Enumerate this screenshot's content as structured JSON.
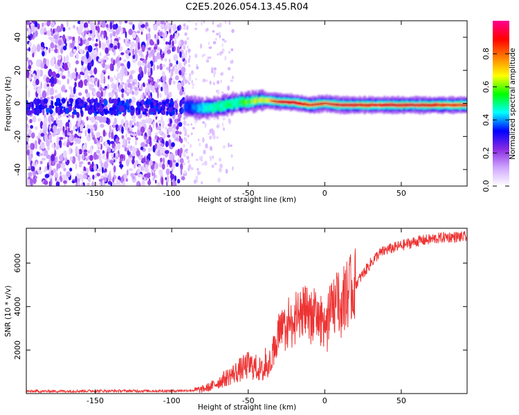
{
  "title": "C2E5.2026.054.13.45.R04",
  "chart_data": [
    {
      "type": "heatmap",
      "xlabel": "Height of straight line (km)",
      "ylabel": "Frequency (Hz)",
      "xlim": [
        -195,
        93
      ],
      "ylim": [
        -50,
        50
      ],
      "xticks": [
        -150,
        -100,
        -50,
        0,
        50
      ],
      "yticks": [
        -40,
        -20,
        0,
        20,
        40
      ],
      "colorbar": {
        "label": "Normalized spectral amplitude",
        "range": [
          0,
          1
        ],
        "ticks": [
          "0.0",
          "0.2",
          "0.4",
          "0.6",
          "0.8"
        ],
        "colors": [
          "#ffffff",
          "#cfa6ff",
          "#8a2be2",
          "#0000ff",
          "#00ffff",
          "#00ff00",
          "#ffff00",
          "#ff8000",
          "#ff0000",
          "#ff0090"
        ]
      },
      "regions": [
        {
          "x_range": [
            -195,
            -92
          ],
          "freq_range": [
            -50,
            50
          ],
          "amplitude": "0.1-0.3",
          "description_color": "#7b2cf0"
        },
        {
          "x_range": [
            -92,
            -60
          ],
          "freq_range": [
            -50,
            50
          ],
          "amplitude": "0.05",
          "description_color": "#e0cdfb"
        }
      ],
      "ridge": [
        {
          "x": -195,
          "f": -2,
          "amp": 0.3
        },
        {
          "x": -90,
          "f": -2,
          "amp": 0.35
        },
        {
          "x": -80,
          "f": -3,
          "amp": 0.45
        },
        {
          "x": -70,
          "f": -2,
          "amp": 0.5
        },
        {
          "x": -60,
          "f": 0,
          "amp": 0.5
        },
        {
          "x": -50,
          "f": 1,
          "amp": 0.6
        },
        {
          "x": -40,
          "f": 2,
          "amp": 0.7
        },
        {
          "x": -30,
          "f": 1,
          "amp": 0.9
        },
        {
          "x": -20,
          "f": 0.5,
          "amp": 0.95
        },
        {
          "x": -10,
          "f": -1,
          "amp": 0.85
        },
        {
          "x": 0,
          "f": 0,
          "amp": 0.85
        },
        {
          "x": 10,
          "f": -1,
          "amp": 0.9
        },
        {
          "x": 30,
          "f": -1,
          "amp": 0.9
        },
        {
          "x": 60,
          "f": -1,
          "amp": 0.9
        },
        {
          "x": 93,
          "f": -1,
          "amp": 0.85
        }
      ]
    },
    {
      "type": "line",
      "xlabel": "Height of straight line (km)",
      "ylabel": "SNR (10 * v/v)",
      "xlim": [
        -195,
        93
      ],
      "ylim": [
        0,
        7600
      ],
      "xticks": [
        -150,
        -100,
        -50,
        0,
        50
      ],
      "yticks": [
        2000,
        4000,
        6000
      ],
      "color": "#ee3333",
      "x": [
        -195,
        -150,
        -100,
        -85,
        -80,
        -75,
        -70,
        -65,
        -60,
        -55,
        -50,
        -45,
        -40,
        -35,
        -30,
        -25,
        -20,
        -15,
        -10,
        -5,
        0,
        5,
        10,
        15,
        20,
        25,
        30,
        35,
        40,
        50,
        60,
        70,
        80,
        93
      ],
      "values": [
        100,
        120,
        120,
        150,
        200,
        300,
        500,
        700,
        900,
        1100,
        1300,
        1200,
        1000,
        1600,
        2800,
        3000,
        3300,
        3600,
        3800,
        3500,
        3200,
        4000,
        4300,
        4600,
        5000,
        5500,
        6000,
        6400,
        6600,
        6800,
        7000,
        7100,
        7200,
        7200
      ]
    }
  ]
}
